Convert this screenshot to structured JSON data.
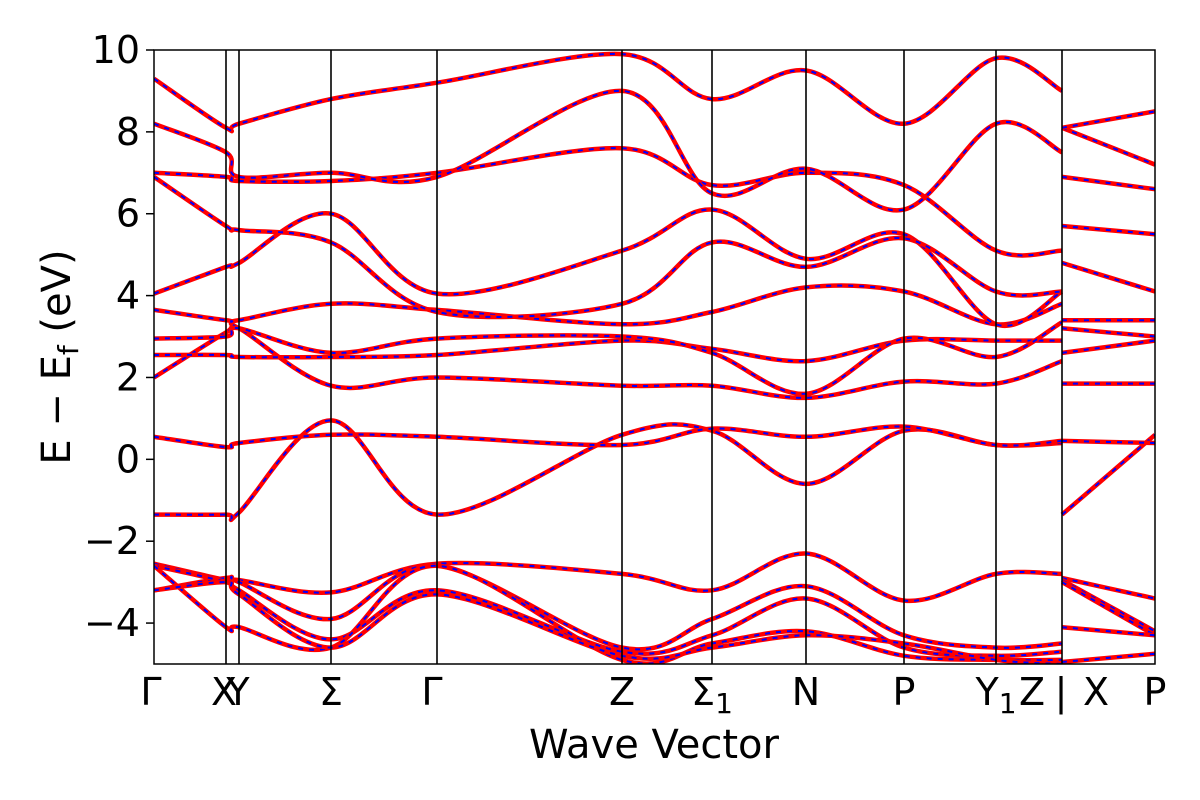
{
  "chart_data": {
    "type": "line",
    "title": "",
    "xlabel": "Wave Vector",
    "ylabel": "E − E",
    "ylabel_subscript": "f",
    "ylabel_unit": "(eV)",
    "ylim": [
      -5,
      10
    ],
    "yticks": [
      {
        "value": -4,
        "label": "−4"
      },
      {
        "value": -2,
        "label": "−2"
      },
      {
        "value": 0,
        "label": "0"
      },
      {
        "value": 2,
        "label": "2"
      },
      {
        "value": 4,
        "label": "4"
      },
      {
        "value": 6,
        "label": "6"
      },
      {
        "value": 8,
        "label": "8"
      },
      {
        "value": 10,
        "label": "10"
      }
    ],
    "kpoint_labels": [
      "Γ",
      "X",
      "Y",
      "Σ",
      "Γ",
      "Z",
      "Σ",
      "N",
      "P",
      "Y",
      "Z",
      "|",
      "X",
      "P"
    ],
    "kpoint_subscript": "1",
    "grid": false,
    "series_colors": {
      "solid": "#ff0000",
      "dashed": "#0000ff"
    }
  }
}
